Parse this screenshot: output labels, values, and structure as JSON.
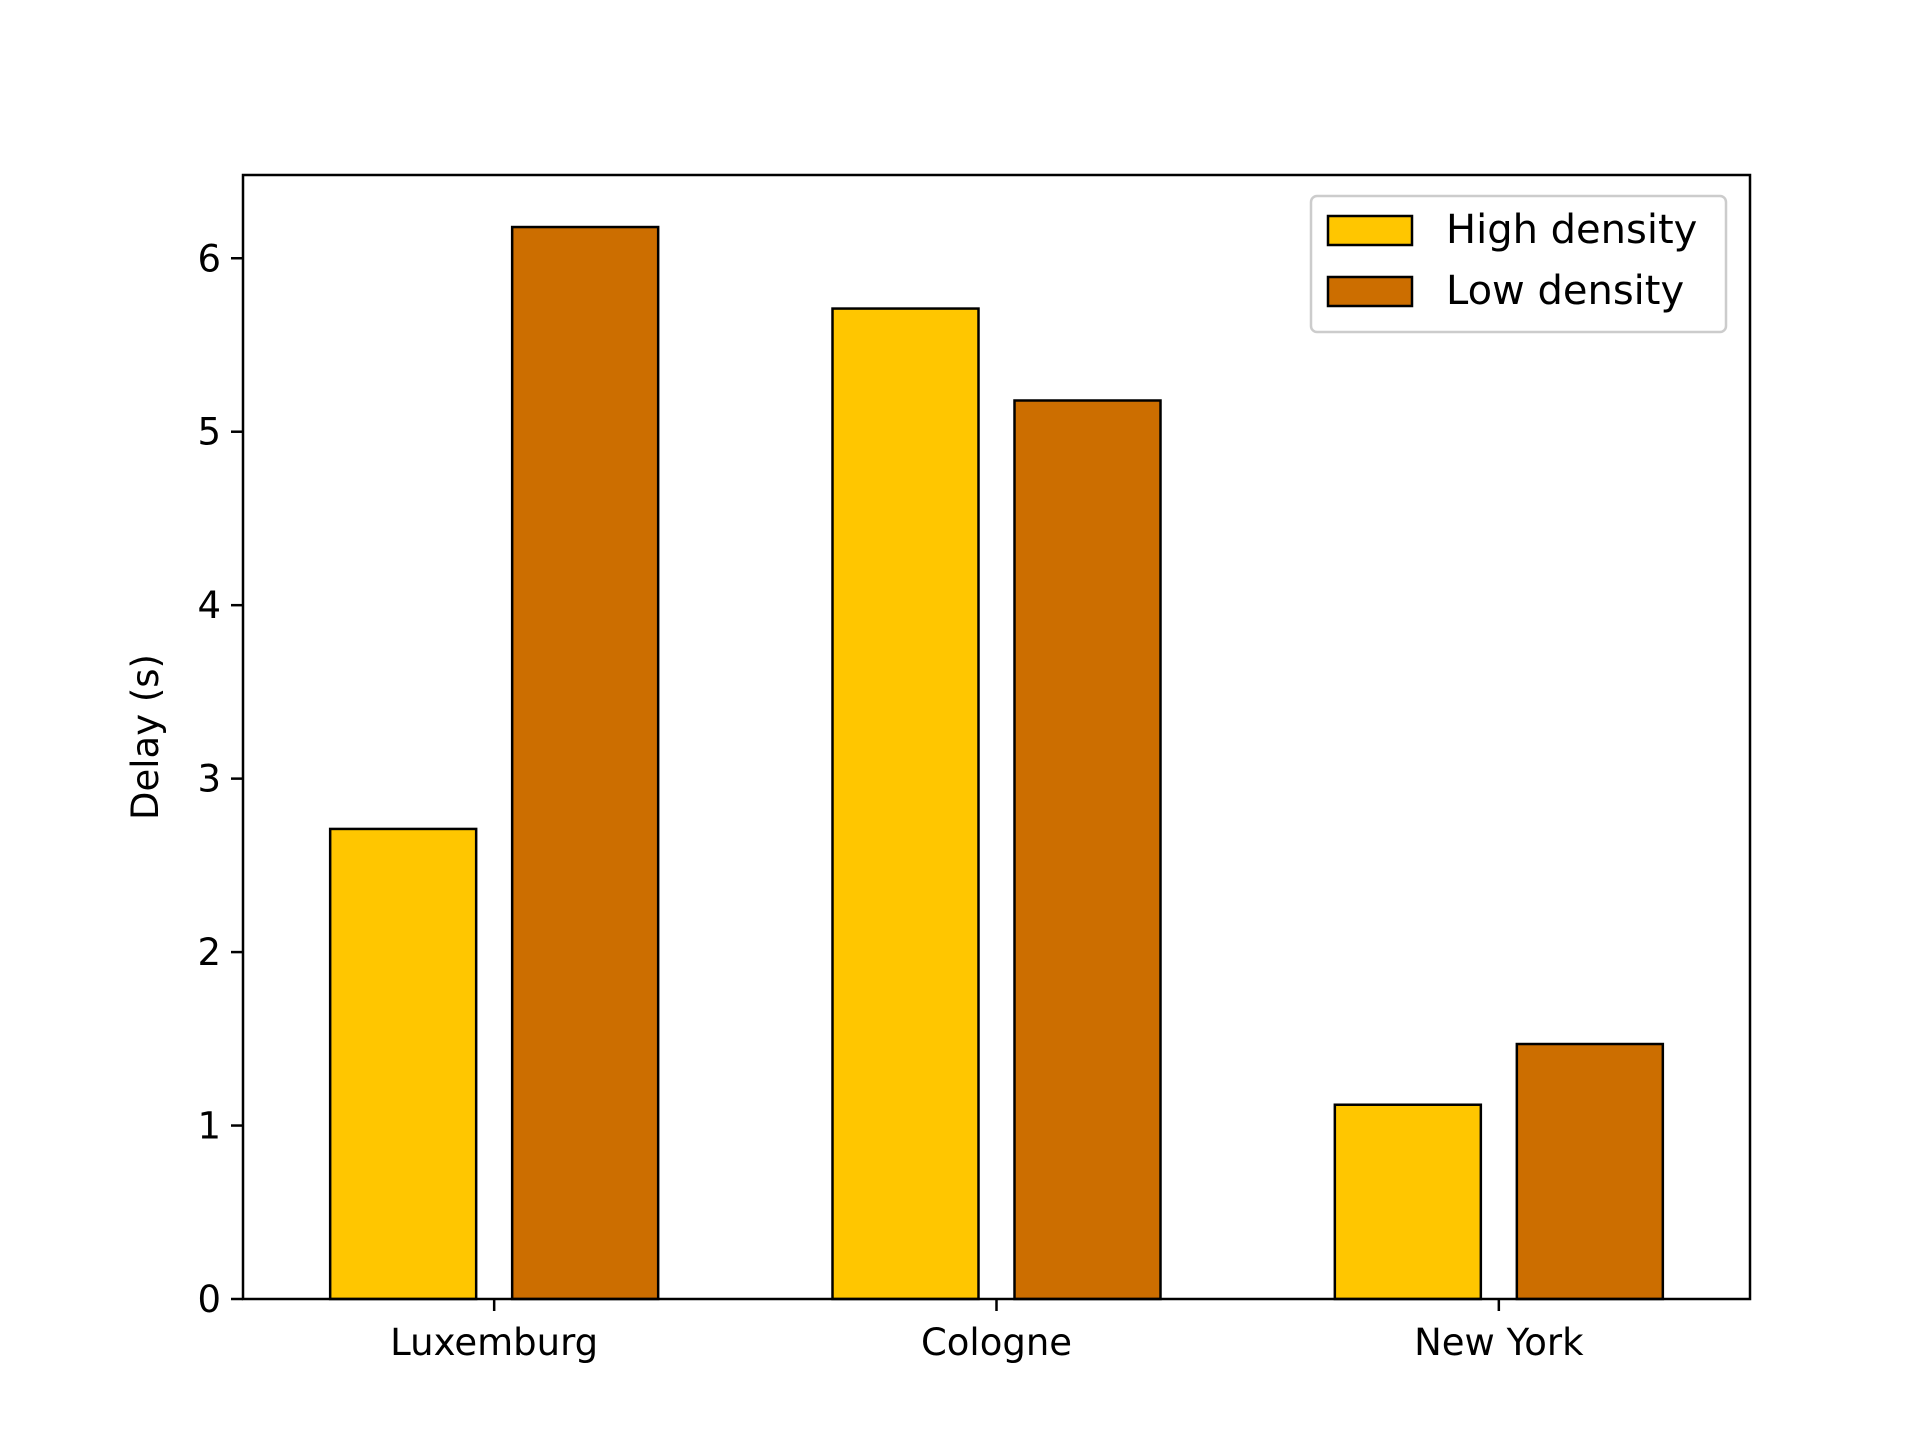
{
  "chart_data": {
    "type": "bar",
    "title": "",
    "xlabel": "",
    "ylabel": "Delay (s)",
    "categories": [
      "Luxemburg",
      "Cologne",
      "New York"
    ],
    "series": [
      {
        "name": "High density",
        "color": "#FFC600",
        "values": [
          2.71,
          5.71,
          1.12
        ]
      },
      {
        "name": "Low density",
        "color": "#CC6E00",
        "values": [
          6.18,
          5.18,
          1.47
        ]
      }
    ],
    "ylim": [
      0,
      6.48
    ],
    "yticks": [
      "0",
      "1",
      "2",
      "3",
      "4",
      "5",
      "6"
    ],
    "grid": false,
    "legend_position": "top-right"
  }
}
